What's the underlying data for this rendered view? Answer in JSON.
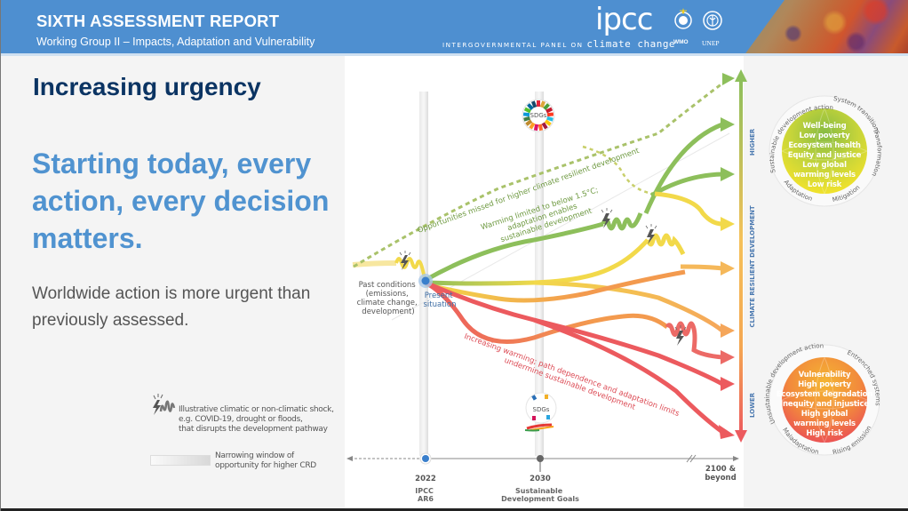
{
  "header": {
    "title": "SIXTH ASSESSMENT REPORT",
    "subtitle": "Working Group II – Impacts, Adaptation and Vulnerability",
    "ipcc_wordmark": "ipcc",
    "ipcc_tagline_small": "INTERGOVERNMENTAL PANEL ON",
    "ipcc_tagline_big": "climate change",
    "partner_logos": [
      {
        "label": "WMO",
        "icon": "wmo-emblem-icon"
      },
      {
        "label": "UNEP",
        "icon": "unep-emblem-icon"
      }
    ],
    "colors": {
      "header_bg": "#4e8fd0"
    }
  },
  "left": {
    "title": "Increasing urgency",
    "headline": "Starting today, every action, every decision matters.",
    "body": "Worldwide action is more urgent than previously assessed.",
    "colors": {
      "title": "#0b3463",
      "headline": "#5093d0",
      "body": "#555555"
    }
  },
  "legend": {
    "shock_icon": "lightning-shock-icon",
    "shock_text": [
      "Illustrative climatic or non-climatic shock,",
      "e.g. COVID-19, drought or floods,",
      "that disrupts the development pathway"
    ],
    "window_text": [
      "Narrowing window of",
      "opportunity for higher CRD"
    ]
  },
  "diagram": {
    "labels": {
      "past_conditions": [
        "Past conditions",
        "(emissions,",
        "climate change,",
        "development)"
      ],
      "present_situation": [
        "Present",
        "situation"
      ],
      "opportunities_missed": "Opportunities missed for higher climate resilient development",
      "warming_limited": [
        "Warming limited to below 1.5°C;",
        "adaptation enables",
        "sustainable development"
      ],
      "increasing_warming": [
        "Increasing warming; path dependence and adaptation limits",
        "undermine sustainable development"
      ],
      "sdgs_top": "SDGs",
      "sdgs_bottom": "SDGs"
    },
    "timeline": {
      "ticks": [
        {
          "year": "2022",
          "caption": [
            "IPCC",
            "AR6"
          ]
        },
        {
          "year": "2030",
          "caption": [
            "Sustainable",
            "Development Goals"
          ]
        },
        {
          "year": "2100 &",
          "caption": [
            "beyond"
          ]
        }
      ]
    },
    "axis": {
      "title": "CLIMATE RESILIENT DEVELOPMENT",
      "high_label": "HIGHER",
      "low_label": "LOWER"
    },
    "pathway_colors": {
      "green": "#8dbf5b",
      "yellow": "#f2d94a",
      "light_orange": "#f5b85a",
      "orange": "#f39a4e",
      "red": "#ec5a5e",
      "dashed_green": "#a9c26a"
    },
    "high_outcome": {
      "ring_labels": [
        "Sustainable development action",
        "System transitions",
        "Transformation",
        "Mitigation",
        "Adaptation"
      ],
      "items": [
        "Well-being",
        "Low poverty",
        "Ecosystem health",
        "Equity and justice",
        "Low global",
        "warming levels",
        "Low risk"
      ]
    },
    "low_outcome": {
      "ring_labels": [
        "Unsustainable development action",
        "Entrenched systems",
        "Rising emissions",
        "Maladaptation"
      ],
      "items": [
        "Vulnerability",
        "High poverty",
        "Ecosystem degradation",
        "Inequity and injustice",
        "High global",
        "warming levels",
        "High risk"
      ]
    }
  }
}
